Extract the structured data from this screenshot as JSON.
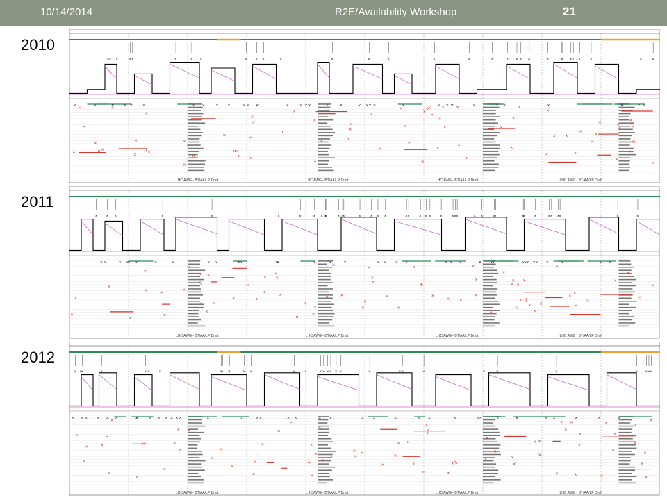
{
  "header": {
    "date": "10/14/2014",
    "title": "R2E/Availability Workshop",
    "page_number": "21"
  },
  "colors": {
    "header_bg": "#8a9483",
    "intensity_line": "#000000",
    "energy_line": "#cc66cc",
    "stable_beams_bar": "#2e8b57",
    "ramp_bar": "#f0a030",
    "fault_marker": "#d9342b",
    "beam_dump_marker": "#5b2d8e",
    "fill_marker": "#2a3fd1"
  },
  "panels": [
    {
      "year": "2010",
      "footer_labels": [
        "LHC AWG - BT/AA/LP Draft",
        "LHC AWG - BT/AA/LP Draft",
        "LHC AWG - BT/AA/LP Draft",
        "LHC AWG - BT/AA/LP Draft"
      ]
    },
    {
      "year": "2011",
      "footer_labels": [
        "LHC AWG - BT/AA/LP Draft",
        "LHC AWG - BT/AA/LP Draft",
        "LHC AWG - BT/AA/LP Draft",
        "LHC AWG - BT/AA/LP Draft"
      ]
    },
    {
      "year": "2012",
      "footer_labels": [
        "LHC AWG - BT/AA/LP Draft",
        "LHC AWG - BT/AA/LP Draft",
        "LHC AWG - BT/AA/LP Draft",
        "LHC AWG - BT/AA/LP Draft"
      ]
    }
  ],
  "chart_data": [
    {
      "type": "line",
      "year": "2010",
      "series": [
        {
          "name": "",
          "x_pct": [
            0,
            3,
            3,
            6,
            6,
            8,
            8,
            11,
            11,
            14,
            14,
            17,
            17,
            22,
            22,
            24,
            24,
            28,
            28,
            31,
            31,
            35,
            35,
            38,
            38,
            42,
            42,
            44,
            44,
            48,
            48,
            53,
            53,
            55,
            55,
            58,
            58,
            62,
            62,
            66,
            66,
            69,
            69,
            74,
            74,
            78,
            78,
            82,
            82,
            86,
            86,
            89,
            89,
            93,
            93,
            96,
            96,
            100
          ],
          "level": [
            0.1,
            0.1,
            0.2,
            0.2,
            0.85,
            0.85,
            0.1,
            0.1,
            0.6,
            0.6,
            0.1,
            0.1,
            0.9,
            0.9,
            0.1,
            0.1,
            0.75,
            0.75,
            0.1,
            0.1,
            0.85,
            0.85,
            0.1,
            0.1,
            0.1,
            0.1,
            0.9,
            0.9,
            0.1,
            0.1,
            0.85,
            0.85,
            0.1,
            0.1,
            0.6,
            0.6,
            0.1,
            0.1,
            0.85,
            0.85,
            0.1,
            0.1,
            0.2,
            0.2,
            0.85,
            0.85,
            0.1,
            0.1,
            0.9,
            0.9,
            0.1,
            0.1,
            0.85,
            0.85,
            0.1,
            0.1,
            0.2,
            0.2
          ]
        }
      ]
    },
    {
      "type": "line",
      "year": "2011",
      "series": [
        {
          "name": "",
          "x_pct": [
            0,
            2,
            2,
            4,
            4,
            6,
            6,
            9,
            9,
            12,
            12,
            16,
            16,
            18,
            18,
            25,
            25,
            27,
            27,
            33,
            33,
            36,
            36,
            42,
            42,
            46,
            46,
            52,
            52,
            55,
            55,
            63,
            63,
            67,
            67,
            74,
            74,
            77,
            77,
            84,
            84,
            88,
            88,
            93,
            93,
            96,
            96,
            100
          ],
          "level": [
            0.1,
            0.1,
            0.9,
            0.9,
            0.1,
            0.1,
            0.85,
            0.85,
            0.1,
            0.1,
            0.9,
            0.9,
            0.1,
            0.1,
            0.95,
            0.95,
            0.1,
            0.1,
            0.9,
            0.9,
            0.1,
            0.1,
            0.9,
            0.9,
            0.1,
            0.1,
            0.95,
            0.95,
            0.1,
            0.1,
            0.9,
            0.9,
            0.1,
            0.1,
            0.95,
            0.95,
            0.1,
            0.1,
            0.9,
            0.9,
            0.1,
            0.1,
            0.95,
            0.95,
            0.1,
            0.1,
            0.9,
            0.9
          ]
        }
      ]
    },
    {
      "type": "line",
      "year": "2012",
      "series": [
        {
          "name": "",
          "x_pct": [
            0,
            2,
            2,
            4,
            4,
            5,
            5,
            8,
            8,
            11,
            11,
            14,
            14,
            17,
            17,
            22,
            22,
            24,
            24,
            30,
            30,
            33,
            33,
            39,
            39,
            42,
            42,
            49,
            49,
            52,
            52,
            58,
            58,
            62,
            62,
            68,
            68,
            71,
            71,
            78,
            78,
            81,
            81,
            88,
            88,
            91,
            91,
            96,
            96,
            100
          ],
          "level": [
            0.1,
            0.1,
            0.9,
            0.9,
            0.1,
            0.1,
            0.95,
            0.95,
            0.1,
            0.1,
            0.9,
            0.9,
            0.1,
            0.1,
            0.95,
            0.95,
            0.1,
            0.1,
            0.9,
            0.9,
            0.1,
            0.1,
            0.95,
            0.95,
            0.1,
            0.1,
            0.9,
            0.9,
            0.1,
            0.1,
            0.95,
            0.95,
            0.1,
            0.1,
            0.9,
            0.9,
            0.1,
            0.1,
            0.95,
            0.95,
            0.1,
            0.1,
            0.9,
            0.9,
            0.1,
            0.1,
            0.95,
            0.95,
            0.1,
            0.1
          ]
        }
      ]
    }
  ]
}
